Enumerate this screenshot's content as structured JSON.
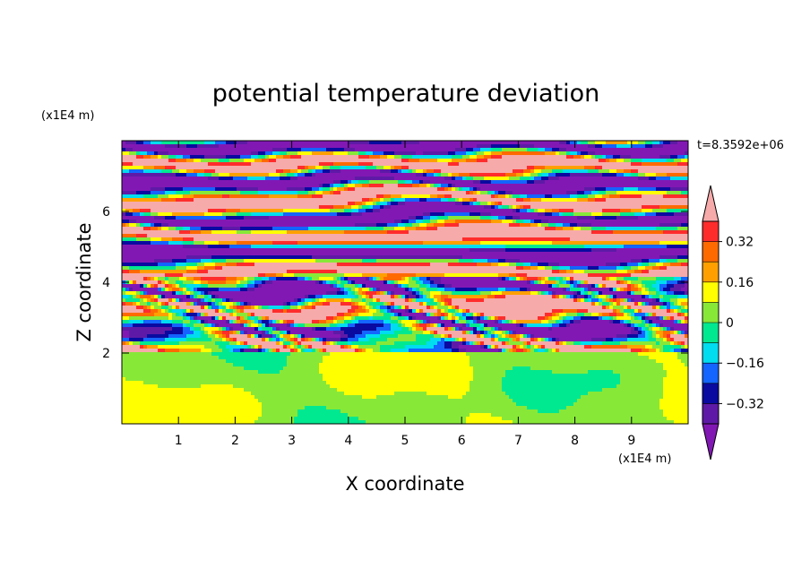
{
  "chart_data": {
    "type": "heatmap",
    "title": "potential temperature deviation",
    "xlabel": "X coordinate",
    "ylabel": "Z coordinate",
    "x_unit": "(x1E4 m)",
    "y_unit": "(x1E4 m)",
    "time_label": "t=8.3592e+06",
    "xlim": [
      0,
      10
    ],
    "ylim": [
      0,
      8
    ],
    "x_ticks": [
      1,
      2,
      3,
      4,
      5,
      6,
      7,
      8,
      9
    ],
    "y_ticks": [
      2,
      4,
      6
    ],
    "grid": false,
    "legend_placement": "right",
    "colorbar": {
      "levels": [
        -0.4,
        -0.32,
        -0.24,
        -0.16,
        -0.08,
        0,
        0.08,
        0.16,
        0.24,
        0.32,
        0.4
      ],
      "labeled_levels": [
        "0.32",
        "0.16",
        "0",
        "−0.16",
        "−0.32"
      ],
      "labeled_values": [
        0.32,
        0.16,
        0,
        -0.16,
        -0.32
      ],
      "colors_low_to_high": [
        "#5e1aa6",
        "#0a0aa0",
        "#1464ff",
        "#00dcf0",
        "#00e890",
        "#88e838",
        "#ffff00",
        "#ffa000",
        "#ff6a00",
        "#ff2c2c"
      ],
      "under_color": "#8218b4",
      "over_color": "#f7aaaa"
    },
    "regions": [
      {
        "z_range": [
          0,
          2
        ],
        "description_values": [
          0,
          0.08
        ],
        "dominant_colors": [
          "#00e890",
          "#88e838"
        ]
      },
      {
        "z_range": [
          2,
          4
        ],
        "description_values": [
          -0.4,
          0.4
        ],
        "dominant_colors": [
          "mixed"
        ]
      },
      {
        "z_range": [
          4,
          8
        ],
        "description_values": [
          -0.4,
          0.4
        ],
        "dominant_colors": [
          "#8218b4",
          "#f7aaaa"
        ]
      }
    ]
  }
}
